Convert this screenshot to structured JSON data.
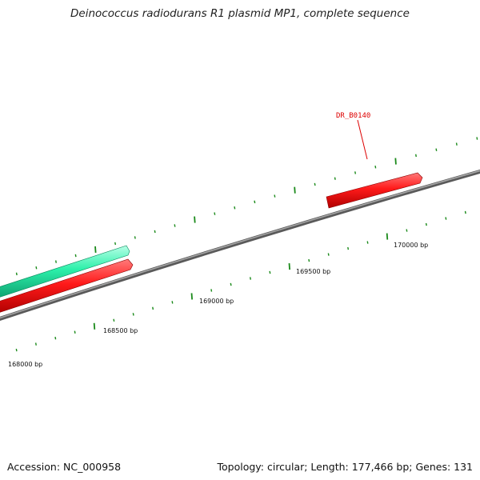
{
  "title": "Deinococcus radiodurans R1 plasmid MP1, complete sequence",
  "footer": {
    "accession": "Accession: NC_000958",
    "summary": "Topology: circular; Length: 177,466 bp; Genes: 131"
  },
  "ticks": [
    {
      "label": "168000 bp"
    },
    {
      "label": "168500 bp"
    },
    {
      "label": "169000 bp"
    },
    {
      "label": "169500 bp"
    },
    {
      "label": "170000 bp"
    }
  ],
  "genes": [
    {
      "label": "DR_B0140"
    }
  ],
  "colors": {
    "backbone": "#7a7a7a",
    "forward_gene": "#ff1a1a",
    "other_feature": "#22e8a0",
    "tick": "#1a8a1a",
    "gene_label": "#dd0000"
  }
}
